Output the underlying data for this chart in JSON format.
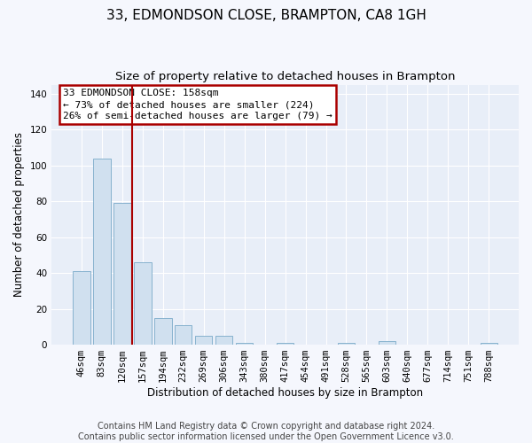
{
  "title": "33, EDMONDSON CLOSE, BRAMPTON, CA8 1GH",
  "subtitle": "Size of property relative to detached houses in Brampton",
  "xlabel": "Distribution of detached houses by size in Brampton",
  "ylabel": "Number of detached properties",
  "bar_color": "#d0e0ef",
  "bar_edge_color": "#7aaac8",
  "background_color": "#e8eef8",
  "fig_background_color": "#f5f7fd",
  "grid_color": "#ffffff",
  "bin_labels": [
    "46sqm",
    "83sqm",
    "120sqm",
    "157sqm",
    "194sqm",
    "232sqm",
    "269sqm",
    "306sqm",
    "343sqm",
    "380sqm",
    "417sqm",
    "454sqm",
    "491sqm",
    "528sqm",
    "565sqm",
    "603sqm",
    "640sqm",
    "677sqm",
    "714sqm",
    "751sqm",
    "788sqm"
  ],
  "bar_values": [
    41,
    104,
    79,
    46,
    15,
    11,
    5,
    5,
    1,
    0,
    1,
    0,
    0,
    1,
    0,
    2,
    0,
    0,
    0,
    0,
    1
  ],
  "ylim": [
    0,
    145
  ],
  "yticks": [
    0,
    20,
    40,
    60,
    80,
    100,
    120,
    140
  ],
  "property_line_x": 2.5,
  "property_line_color": "#aa0000",
  "annotation_line1": "33 EDMONDSON CLOSE: 158sqm",
  "annotation_line2": "← 73% of detached houses are smaller (224)",
  "annotation_line3": "26% of semi-detached houses are larger (79) →",
  "annotation_box_color": "#aa0000",
  "footer_text": "Contains HM Land Registry data © Crown copyright and database right 2024.\nContains public sector information licensed under the Open Government Licence v3.0.",
  "title_fontsize": 11,
  "subtitle_fontsize": 9.5,
  "axis_label_fontsize": 8.5,
  "tick_fontsize": 7.5,
  "annotation_fontsize": 8,
  "footer_fontsize": 7
}
